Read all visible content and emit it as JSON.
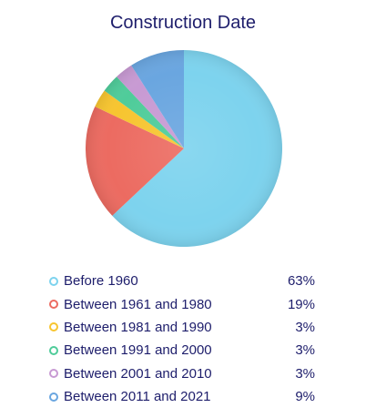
{
  "chart_data": {
    "type": "pie",
    "title": "Construction Date",
    "categories": [
      "Before 1960",
      "Between 1961 and 1980",
      "Between 1981 and 1990",
      "Between 1991 and 2000",
      "Between 2001 and 2010",
      "Between 2011 and 2021"
    ],
    "values": [
      63,
      19,
      3,
      3,
      3,
      9
    ],
    "value_labels": [
      "63%",
      "19%",
      "3%",
      "3%",
      "3%",
      "9%"
    ],
    "colors": [
      "#7dd3ee",
      "#ec6b61",
      "#f7c530",
      "#4fcc9a",
      "#c89ad3",
      "#6aa6e0"
    ],
    "legend_position": "bottom"
  }
}
